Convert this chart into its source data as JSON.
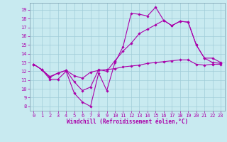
{
  "title": "",
  "xlabel": "Windchill (Refroidissement éolien,°C)",
  "background_color": "#c8eaf0",
  "grid_color": "#a0ccd8",
  "line_color": "#aa00aa",
  "x_values": [
    0,
    1,
    2,
    3,
    4,
    5,
    6,
    7,
    8,
    9,
    10,
    11,
    12,
    13,
    14,
    15,
    16,
    17,
    18,
    19,
    20,
    21,
    22,
    23
  ],
  "line1_y": [
    12.8,
    12.2,
    11.1,
    11.1,
    12.0,
    9.5,
    8.5,
    8.0,
    11.8,
    9.8,
    13.0,
    14.8,
    18.6,
    18.5,
    18.3,
    19.3,
    17.8,
    17.2,
    17.7,
    17.6,
    15.0,
    13.5,
    13.5,
    13.0
  ],
  "line2_y": [
    12.8,
    12.2,
    11.4,
    11.8,
    12.1,
    11.5,
    11.2,
    11.9,
    12.1,
    12.2,
    12.3,
    12.5,
    12.6,
    12.7,
    12.9,
    13.0,
    13.1,
    13.2,
    13.3,
    13.3,
    12.8,
    12.7,
    12.8,
    12.8
  ],
  "line3_y": [
    12.8,
    12.2,
    11.3,
    11.8,
    12.1,
    10.8,
    9.8,
    10.2,
    12.2,
    12.0,
    13.2,
    14.3,
    15.2,
    16.3,
    16.8,
    17.3,
    17.8,
    17.2,
    17.7,
    17.6,
    15.0,
    13.5,
    13.0,
    12.9
  ],
  "ylim_min": 7.5,
  "ylim_max": 19.8,
  "xlim_min": -0.5,
  "xlim_max": 23.5,
  "yticks": [
    8,
    9,
    10,
    11,
    12,
    13,
    14,
    15,
    16,
    17,
    18,
    19
  ],
  "xticks": [
    0,
    1,
    2,
    3,
    4,
    5,
    6,
    7,
    8,
    9,
    10,
    11,
    12,
    13,
    14,
    15,
    16,
    17,
    18,
    19,
    20,
    21,
    22,
    23
  ],
  "tick_fontsize": 5.0,
  "xlabel_fontsize": 5.5
}
